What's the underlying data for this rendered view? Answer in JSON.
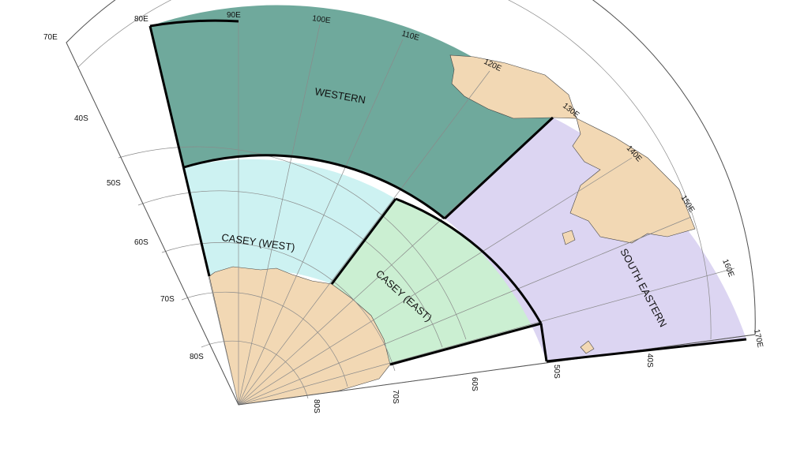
{
  "map": {
    "regions": [
      {
        "name": "WESTERN",
        "color": "#6fa99c"
      },
      {
        "name": "CASEY (WEST)",
        "color": "#cdf2f2"
      },
      {
        "name": "CASEY (EAST)",
        "color": "#cbefd2"
      },
      {
        "name": "SOUTH EASTERN",
        "color": "#dcd5f2"
      }
    ],
    "land_color": "#f2d8b4",
    "longitude_labels": [
      "70E",
      "80E",
      "90E",
      "100E",
      "110E",
      "120E",
      "130E",
      "140E",
      "150E",
      "160E",
      "170E"
    ],
    "latitude_labels_left": [
      "40S",
      "50S",
      "60S",
      "70S",
      "80S"
    ],
    "latitude_labels_bottom": [
      "80S",
      "70S",
      "60S",
      "50S",
      "40S"
    ]
  }
}
